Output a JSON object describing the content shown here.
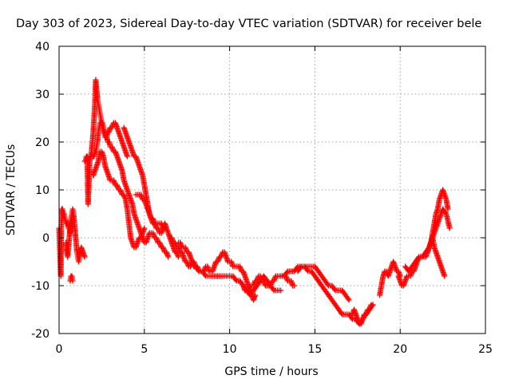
{
  "chart_data": {
    "type": "scatter",
    "title": "Day 303 of 2023, Sidereal Day-to-day VTEC variation (SDTVAR) for receiver bele",
    "xlabel": "GPS time / hours",
    "ylabel": "SDTVAR / TECUs",
    "xlim": [
      0,
      25
    ],
    "ylim": [
      -20,
      40
    ],
    "xticks": [
      0,
      5,
      10,
      15,
      20,
      25
    ],
    "yticks": [
      -20,
      -10,
      0,
      10,
      20,
      30,
      40
    ],
    "grid": true,
    "marker": "+",
    "series": [
      {
        "name": "SDTVAR",
        "color": "#ff0000",
        "tracks": [
          {
            "x": [
              0.0,
              0.05,
              0.1,
              0.15,
              0.2,
              0.25,
              0.3,
              0.35,
              0.4,
              0.45,
              0.5,
              0.55,
              0.6,
              0.65,
              0.7,
              0.75,
              0.8
            ],
            "y": [
              2,
              -3,
              -8,
              6,
              6,
              5,
              5,
              4,
              3,
              3,
              3,
              2,
              2,
              1,
              2,
              3,
              4
            ]
          },
          {
            "x": [
              0.4,
              0.45,
              0.5,
              0.55,
              0.6,
              0.65,
              0.7,
              0.75,
              0.8,
              0.85,
              0.9,
              0.95,
              1.0,
              1.05,
              1.1,
              1.15,
              1.2,
              1.3,
              1.4,
              1.5
            ],
            "y": [
              -1,
              -3,
              -4,
              -2,
              0,
              2,
              4,
              5,
              6,
              5,
              3,
              1,
              -1,
              -3,
              -4,
              -5,
              -4,
              -2,
              -3,
              -4
            ]
          },
          {
            "x": [
              0.65,
              0.7,
              0.75,
              0.8
            ],
            "y": [
              -9,
              -8,
              -8,
              -9
            ]
          },
          {
            "x": [
              1.5,
              1.55,
              1.6,
              1.65,
              1.7,
              1.8,
              1.9,
              2.0,
              2.05,
              2.1,
              2.15,
              2.2,
              2.25,
              2.3,
              2.35,
              2.4,
              2.45,
              2.5,
              2.55,
              2.6,
              2.65,
              2.7,
              2.75,
              2.8,
              2.85,
              2.9,
              3.0,
              3.1,
              3.2,
              3.3,
              3.4,
              3.5,
              3.6,
              3.7,
              3.8,
              3.9,
              4.0
            ],
            "y": [
              16,
              16,
              17,
              17,
              7,
              16,
              18,
              22,
              25,
              28,
              33,
              31,
              29,
              28,
              27,
              26,
              25,
              24,
              23,
              22,
              22,
              21,
              21,
              21,
              22,
              22,
              23,
              23,
              24,
              24,
              23,
              22,
              21,
              20,
              19,
              18,
              17
            ]
          },
          {
            "x": [
              2.0,
              2.05,
              2.1,
              2.15,
              2.2,
              2.25,
              2.3,
              2.35,
              2.4,
              2.45,
              2.5,
              2.55,
              2.6,
              2.65,
              2.7,
              2.75,
              2.8,
              2.85,
              2.9,
              2.95,
              3.0,
              3.1,
              3.2,
              3.3,
              3.4,
              3.5,
              3.6,
              3.7,
              3.8,
              3.9,
              4.0,
              4.1,
              4.2,
              4.3,
              4.4,
              4.5,
              4.6,
              4.7,
              4.8,
              4.9,
              5.0,
              5.1,
              5.2,
              5.3,
              5.4,
              5.5,
              5.6,
              5.7,
              5.8,
              5.9,
              6.0,
              6.1,
              6.2,
              6.3,
              6.4
            ],
            "y": [
              17,
              17,
              18,
              18,
              19,
              20,
              22,
              23,
              24,
              24,
              24,
              24,
              23,
              22,
              22,
              21,
              21,
              20,
              20,
              20,
              19,
              19,
              18,
              18,
              17,
              16,
              15,
              14,
              12,
              11,
              10,
              9,
              8,
              7,
              5,
              4,
              3,
              2,
              1,
              0,
              -1,
              -1,
              0,
              1,
              1,
              1,
              0,
              0,
              -1,
              -1,
              -2,
              -2,
              -3,
              -3,
              -4
            ]
          },
          {
            "x": [
              2.0,
              2.1,
              2.2,
              2.3,
              2.4,
              2.5,
              2.6,
              2.7,
              2.8,
              2.9,
              3.0,
              3.1,
              3.2,
              3.3,
              3.4,
              3.5,
              3.6,
              3.7,
              3.8,
              3.9,
              4.0,
              4.1,
              4.2,
              4.3,
              4.4,
              4.5,
              4.6,
              4.7,
              4.8,
              4.9,
              5.0
            ],
            "y": [
              13,
              14,
              15,
              16,
              18,
              18,
              17,
              15,
              14,
              13,
              12,
              12,
              12,
              11,
              11,
              10,
              10,
              9,
              9,
              8,
              6,
              3,
              0,
              -1,
              -2,
              -2,
              -1,
              0,
              0,
              1,
              2
            ]
          },
          {
            "x": [
              3.8,
              3.9,
              4.0,
              4.1,
              4.2,
              4.3,
              4.4,
              4.5,
              4.6,
              4.7,
              4.8,
              4.9,
              5.0,
              5.1,
              5.2,
              5.3,
              5.4,
              5.5,
              5.6,
              5.7,
              5.8,
              5.9,
              6.0,
              6.1,
              6.2,
              6.3,
              6.5,
              6.6,
              6.7,
              6.8,
              6.9,
              7.0
            ],
            "y": [
              23,
              22,
              21,
              20,
              19,
              18,
              17,
              17,
              16,
              15,
              14,
              13,
              11,
              9,
              7,
              5,
              4,
              3,
              3,
              2,
              2,
              1,
              1,
              2,
              3,
              2,
              0,
              -1,
              -2,
              -3,
              -3,
              -4
            ]
          },
          {
            "x": [
              4.5,
              4.6,
              4.7,
              4.8,
              4.9,
              5.0,
              5.1,
              5.2,
              5.3,
              5.4,
              5.5,
              5.6,
              5.7,
              5.8,
              5.9,
              6.0,
              6.1,
              6.2
            ],
            "y": [
              9,
              9,
              9,
              9,
              8,
              8,
              7,
              6,
              5,
              4,
              4,
              3,
              3,
              3,
              3,
              3,
              2,
              2
            ]
          },
          {
            "x": [
              6.5,
              6.6,
              6.7,
              6.8,
              6.9,
              7.0,
              7.1,
              7.2,
              7.3,
              7.4,
              7.5,
              7.6,
              7.7,
              7.8,
              7.9,
              8.0,
              8.1,
              8.2,
              8.3,
              8.4,
              8.5,
              8.6,
              8.7,
              8.8,
              8.9,
              9.0,
              9.1,
              9.2,
              9.3,
              9.4,
              9.5,
              9.6,
              9.7,
              9.8,
              9.9,
              10.0,
              10.1,
              10.2,
              10.3,
              10.4,
              10.5,
              10.6,
              10.7,
              10.8,
              10.9,
              11.0,
              11.1,
              11.2,
              11.3,
              11.4,
              11.5
            ],
            "y": [
              0,
              0,
              -1,
              -1,
              -2,
              -2,
              -3,
              -3,
              -4,
              -5,
              -5,
              -6,
              -6,
              -5,
              -5,
              -6,
              -6,
              -7,
              -7,
              -7,
              -7,
              -6,
              -6,
              -7,
              -7,
              -7,
              -6,
              -5,
              -5,
              -4,
              -4,
              -3,
              -3,
              -4,
              -5,
              -5,
              -5,
              -6,
              -6,
              -6,
              -6,
              -6,
              -7,
              -7,
              -8,
              -9,
              -10,
              -11,
              -12,
              -13,
              -12
            ]
          },
          {
            "x": [
              7.0,
              7.1,
              7.2,
              7.3,
              7.4,
              7.5,
              7.6,
              7.7,
              7.8,
              7.9,
              8.0,
              8.2,
              8.4,
              8.6,
              8.8,
              9.0,
              9.2,
              9.4,
              9.6,
              9.8,
              10.0,
              10.2,
              10.4,
              10.6,
              10.8,
              11.0,
              11.2,
              11.4,
              11.6,
              11.8,
              12.0,
              12.2,
              12.4,
              12.6,
              12.8,
              13.0
            ],
            "y": [
              -1,
              -1,
              -2,
              -2,
              -2,
              -3,
              -3,
              -4,
              -5,
              -6,
              -6,
              -7,
              -7,
              -8,
              -8,
              -8,
              -8,
              -8,
              -8,
              -8,
              -8,
              -8,
              -9,
              -9,
              -10,
              -11,
              -12,
              -11,
              -10,
              -9,
              -8,
              -9,
              -10,
              -11,
              -11,
              -11
            ]
          },
          {
            "x": [
              10.8,
              10.9,
              11.0,
              11.1,
              11.2,
              11.3,
              11.4,
              11.5,
              11.6,
              11.7,
              11.8,
              11.9,
              12.0,
              12.1,
              12.2,
              12.3,
              12.4,
              12.5,
              12.6,
              12.7,
              12.8,
              12.9,
              13.0,
              13.1,
              13.2,
              13.3,
              13.4,
              13.5,
              13.6,
              13.7,
              13.8
            ],
            "y": [
              -10,
              -11,
              -11,
              -11,
              -10,
              -10,
              -10,
              -9,
              -9,
              -8,
              -8,
              -9,
              -9,
              -10,
              -10,
              -10,
              -10,
              -9,
              -9,
              -8,
              -8,
              -8,
              -8,
              -8,
              -8,
              -8,
              -9,
              -9,
              -9,
              -10,
              -10
            ]
          },
          {
            "x": [
              13.0,
              13.2,
              13.4,
              13.6,
              13.8,
              14.0,
              14.2,
              14.4,
              14.6,
              14.8,
              15.0,
              15.2,
              15.4,
              15.6,
              15.8,
              16.0,
              16.2,
              16.4,
              16.6,
              16.8,
              17.0
            ],
            "y": [
              -8,
              -8,
              -7,
              -7,
              -7,
              -6,
              -6,
              -6,
              -6,
              -6,
              -6,
              -7,
              -8,
              -9,
              -10,
              -10,
              -11,
              -11,
              -11,
              -12,
              -13
            ]
          },
          {
            "x": [
              14.0,
              14.2,
              14.4,
              14.6,
              14.8,
              15.0,
              15.2,
              15.4,
              15.6,
              15.8,
              16.0,
              16.2,
              16.4,
              16.6,
              16.8,
              17.0,
              17.2,
              17.4,
              17.6,
              17.8,
              18.0,
              18.2,
              18.4
            ],
            "y": [
              -7,
              -6,
              -6,
              -7,
              -7,
              -8,
              -9,
              -10,
              -11,
              -12,
              -13,
              -14,
              -15,
              -16,
              -16,
              -16,
              -17,
              -17,
              -18,
              -17,
              -16,
              -15,
              -14
            ]
          },
          {
            "x": [
              17.2,
              17.3,
              17.4,
              17.5,
              17.6,
              17.7,
              17.8,
              17.9,
              18.0,
              18.1,
              18.2,
              18.3,
              18.4
            ],
            "y": [
              -16,
              -15,
              -16,
              -17,
              -18,
              -18,
              -17,
              -16,
              -16,
              -15,
              -15,
              -14,
              -14
            ]
          },
          {
            "x": [
              18.8,
              18.9,
              19.0,
              19.1,
              19.2,
              19.3,
              19.4,
              19.5,
              19.6,
              19.7,
              19.8,
              19.9,
              20.0
            ],
            "y": [
              -12,
              -10,
              -8,
              -7,
              -7,
              -8,
              -7,
              -6,
              -5,
              -6,
              -7,
              -7,
              -8
            ]
          },
          {
            "x": [
              19.9,
              20.0,
              20.1,
              20.2,
              20.3,
              20.4,
              20.5,
              20.6,
              20.7,
              20.8,
              20.9,
              21.0,
              21.1,
              21.2,
              21.3,
              21.4,
              21.5,
              21.6,
              21.7,
              21.8,
              21.9,
              22.0,
              22.1,
              22.2,
              22.3,
              22.4,
              22.5,
              22.6,
              22.7,
              22.8
            ],
            "y": [
              -8,
              -9,
              -10,
              -10,
              -9,
              -8,
              -8,
              -8,
              -7,
              -7,
              -6,
              -5,
              -4,
              -4,
              -4,
              -4,
              -4,
              -3,
              -2,
              -1,
              1,
              3,
              5,
              6,
              8,
              9,
              10,
              9,
              8,
              6
            ]
          },
          {
            "x": [
              20.3,
              20.5,
              20.7,
              20.9,
              21.1,
              21.3,
              21.5,
              21.7,
              21.9,
              22.1,
              22.3,
              22.5,
              22.7,
              22.9
            ],
            "y": [
              -6,
              -7,
              -6,
              -5,
              -4,
              -4,
              -3,
              -2,
              0,
              2,
              4,
              6,
              5,
              2
            ]
          },
          {
            "x": [
              21.6,
              21.7,
              21.8,
              21.9,
              22.0,
              22.1,
              22.2,
              22.3,
              22.4,
              22.5,
              22.6
            ],
            "y": [
              -3,
              -2,
              -1,
              0,
              -2,
              -3,
              -4,
              -5,
              -6,
              -7,
              -8
            ]
          }
        ]
      }
    ]
  }
}
